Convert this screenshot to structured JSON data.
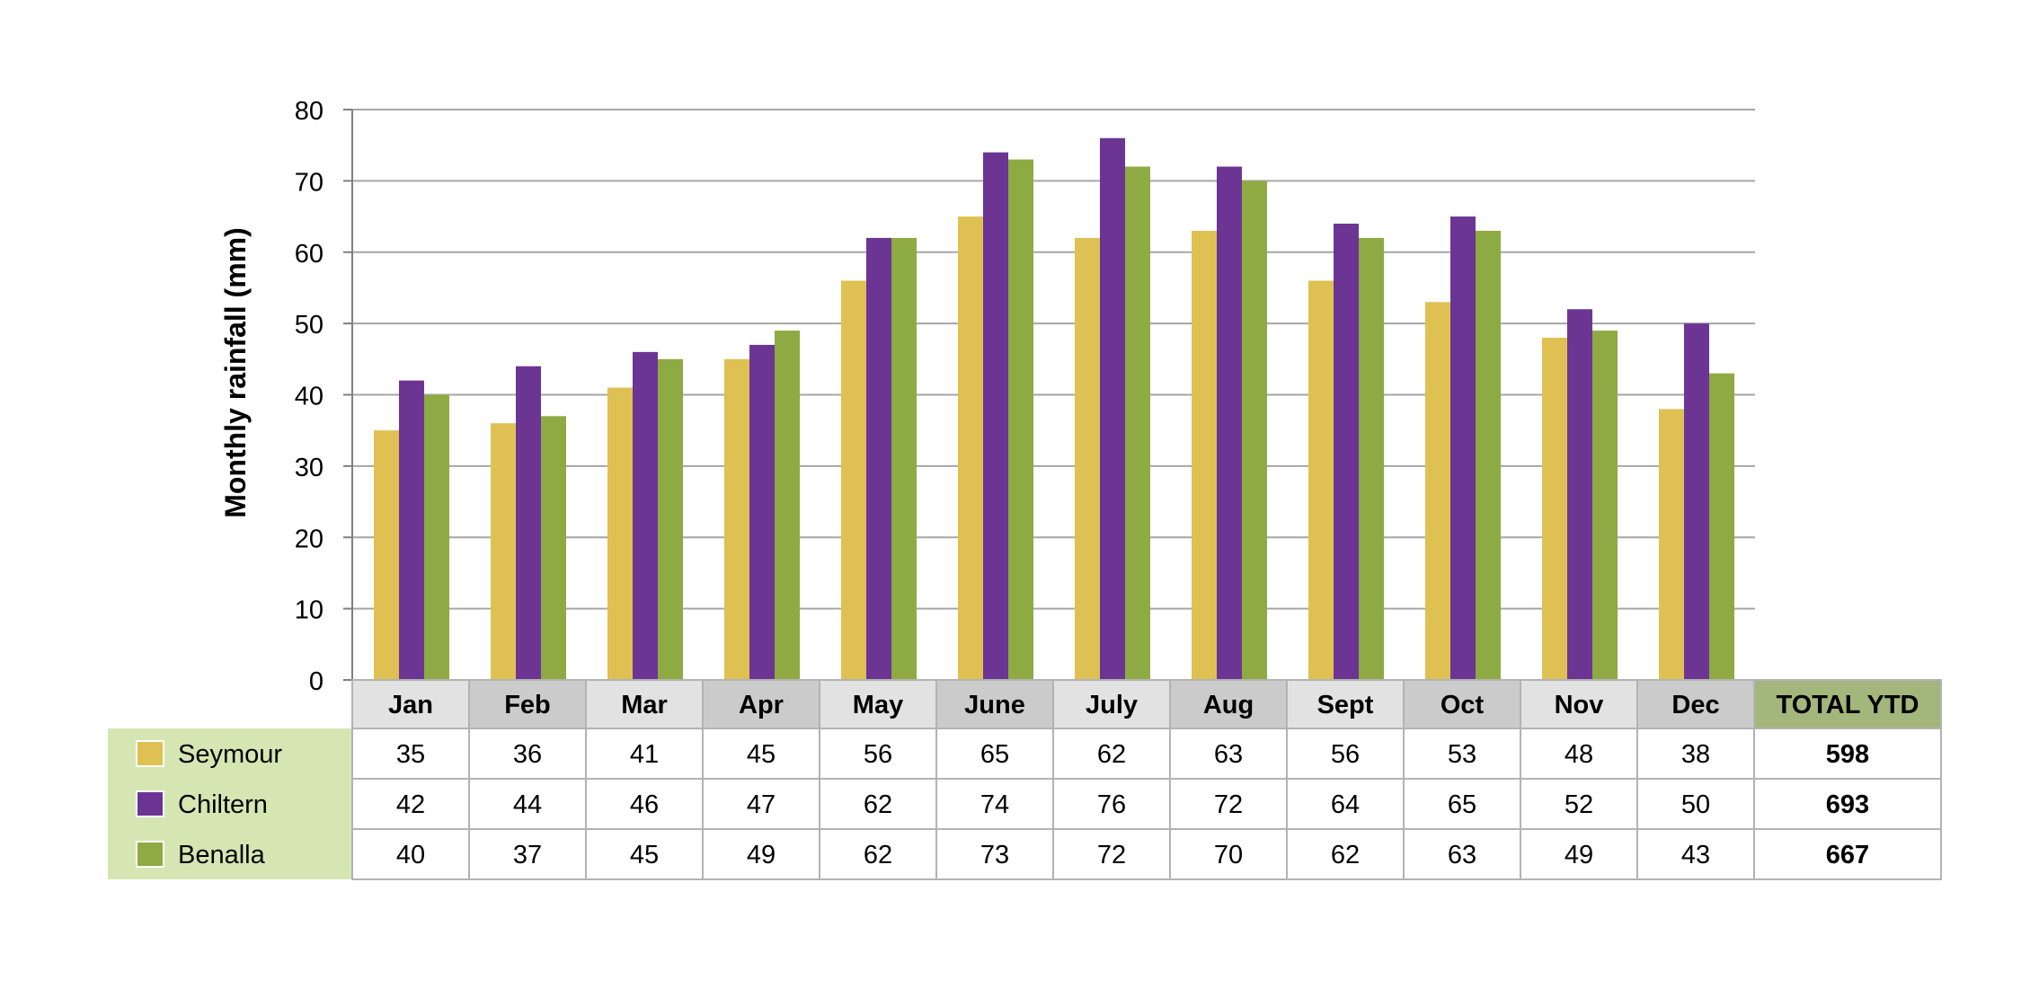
{
  "chart_data": {
    "type": "bar",
    "title": "",
    "xlabel": "",
    "ylabel": "Monthly rainfall (mm)",
    "ylim": [
      0,
      80
    ],
    "yticks": [
      0,
      10,
      20,
      30,
      40,
      50,
      60,
      70,
      80
    ],
    "grid": true,
    "legend": "data-table-left",
    "categories": [
      "Jan",
      "Feb",
      "Mar",
      "Apr",
      "May",
      "June",
      "July",
      "Aug",
      "Sept",
      "Oct",
      "Nov",
      "Dec"
    ],
    "series": [
      {
        "name": "Seymour",
        "color": "#DFC153",
        "values": [
          35,
          36,
          41,
          45,
          56,
          65,
          62,
          63,
          56,
          53,
          48,
          38
        ],
        "total": 598
      },
      {
        "name": "Chiltern",
        "color": "#6C3594",
        "values": [
          42,
          44,
          46,
          47,
          62,
          74,
          76,
          72,
          64,
          65,
          52,
          50
        ],
        "total": 693
      },
      {
        "name": "Benalla",
        "color": "#8EAA42",
        "values": [
          40,
          37,
          45,
          49,
          62,
          73,
          72,
          70,
          62,
          63,
          49,
          43
        ],
        "total": 667
      }
    ],
    "total_label": "TOTAL YTD",
    "colors": {
      "header_light": "#E2E2E2",
      "header_dark": "#CBCBCB",
      "total_header": "#A3B77C",
      "legend_bg": "#D6E6B3",
      "grid": "#A6A6A6",
      "table_border": "#B3B3B3"
    }
  }
}
